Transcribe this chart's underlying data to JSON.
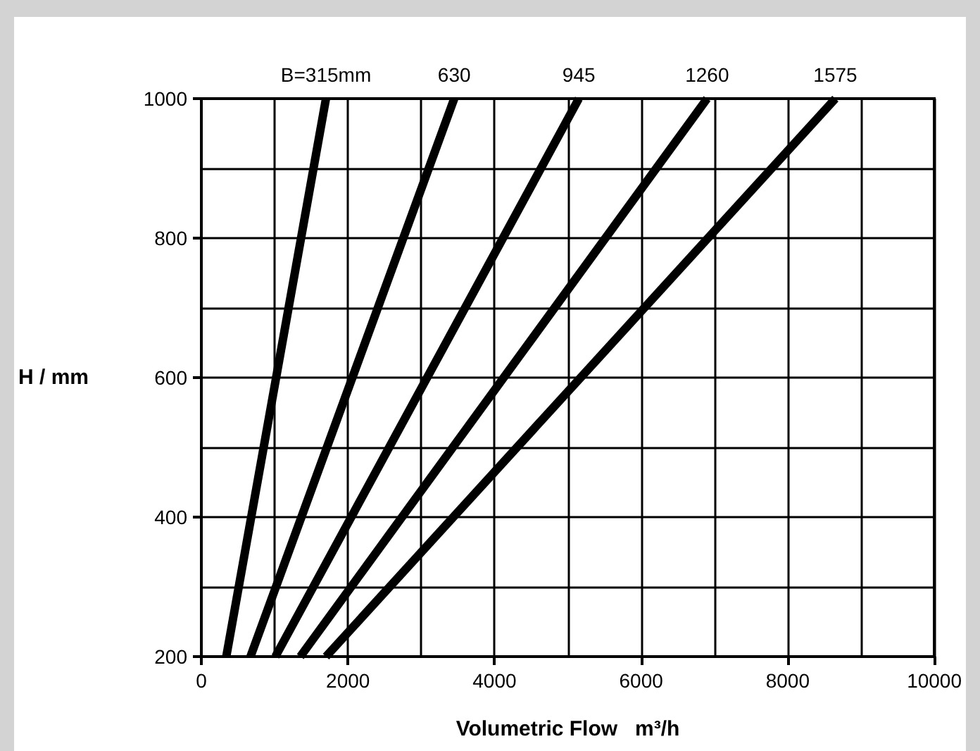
{
  "chart_data": {
    "type": "line",
    "xlabel": "Volumetric Flow   m³/h",
    "ylabel": "H / mm",
    "series": [
      {
        "name": "B=315mm",
        "color": "#000000",
        "x": [
          340,
          1700
        ],
        "values": [
          200,
          1000
        ]
      },
      {
        "name": "630",
        "color": "#000000",
        "x": [
          670,
          3450
        ],
        "values": [
          200,
          1000
        ]
      },
      {
        "name": "945",
        "color": "#000000",
        "x": [
          1010,
          5150
        ],
        "values": [
          200,
          1000
        ]
      },
      {
        "name": "1260",
        "color": "#000000",
        "x": [
          1350,
          6900
        ],
        "values": [
          200,
          1000
        ]
      },
      {
        "name": "1575",
        "color": "#000000",
        "x": [
          1700,
          8650
        ],
        "values": [
          200,
          1000
        ]
      }
    ],
    "xlim": [
      0,
      10000
    ],
    "ylim": [
      200,
      1000
    ],
    "xticks": [
      0,
      {
        "value": 1000,
        "label": null
      },
      2000,
      {
        "value": 3000,
        "label": null
      },
      4000,
      {
        "value": 5000,
        "label": null
      },
      6000,
      {
        "value": 7000,
        "label": null
      },
      8000,
      {
        "value": 9000,
        "label": null
      },
      10000
    ],
    "yticks": [
      200,
      {
        "value": 300,
        "label": null
      },
      400,
      {
        "value": 500,
        "label": null
      },
      600,
      {
        "value": 700,
        "label": null
      },
      800,
      {
        "value": 900,
        "label": null
      },
      1000
    ],
    "grid": true,
    "legend": false,
    "marker": "none",
    "line_style": "solid"
  }
}
